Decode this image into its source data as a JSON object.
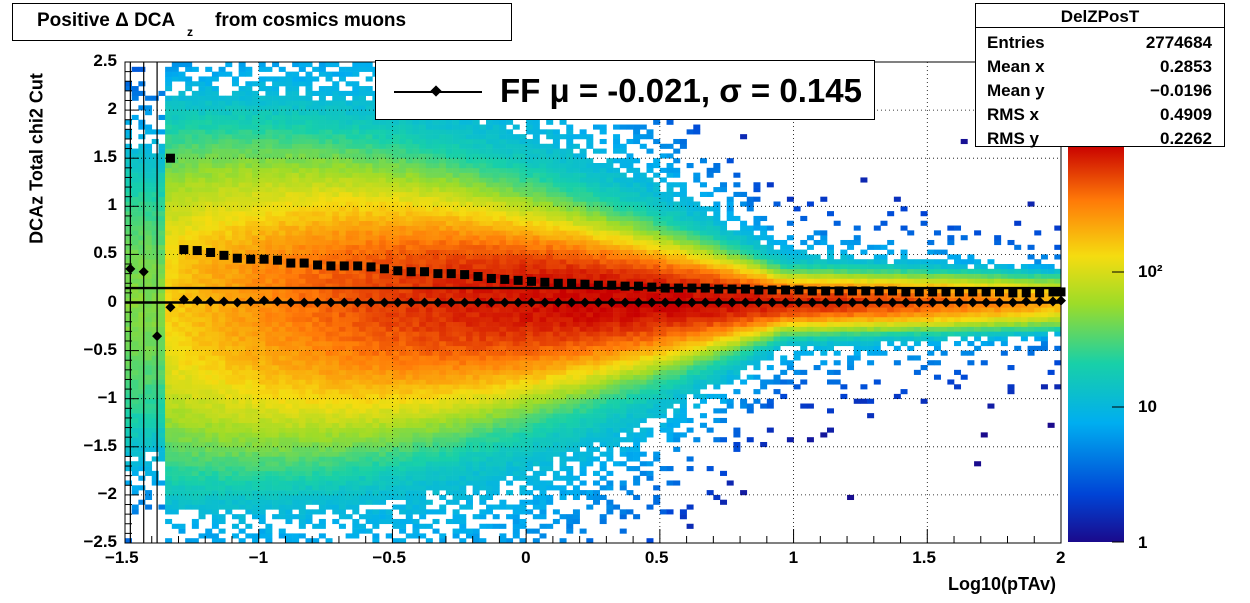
{
  "title": {
    "prefix": "Positive Δ DCA",
    "subscript": "z",
    "suffix": "from cosmics muons"
  },
  "stats": {
    "name": "DelZPosT",
    "rows": [
      {
        "key": "Entries",
        "value": "2774684"
      },
      {
        "key": "Mean x",
        "value": "0.2853"
      },
      {
        "key": "Mean y",
        "value": "−0.0196"
      },
      {
        "key": "RMS x",
        "value": "0.4909"
      },
      {
        "key": "RMS y",
        "value": "0.2262"
      }
    ]
  },
  "legend": {
    "text": "FF μ = -0.021, σ =   0.145"
  },
  "chart_data": {
    "type": "heatmap",
    "title": "Positive Δ DCAz from cosmics muons",
    "xlabel": "Log10(pTAv)",
    "ylabel": "DCAz   Total chi2 Cut",
    "xlim": [
      -1.5,
      2
    ],
    "ylim": [
      -2.5,
      2.5
    ],
    "x_ticks": [
      "−1.5",
      "−1",
      "−0.5",
      "0",
      "0.5",
      "1",
      "1.5",
      "2"
    ],
    "y_ticks": [
      "2.5",
      "2",
      "1.5",
      "1",
      "0.5",
      "0",
      "−0.5",
      "−1",
      "−1.5",
      "−2",
      "−2.5"
    ],
    "colorbar": {
      "scale": "log",
      "range": [
        1,
        1000
      ],
      "tick_labels": [
        "1",
        "10",
        "10²"
      ]
    },
    "grid": true,
    "fit_line": {
      "y": 0.15
    },
    "series": [
      {
        "marker": "diamond",
        "x": [
          -1.48,
          -1.43,
          -1.38,
          -1.33,
          -1.28,
          -1.23,
          -1.18,
          -1.13,
          -1.08,
          -1.03,
          -0.98,
          -0.93,
          -0.88,
          -0.83,
          -0.78,
          -0.73,
          -0.68,
          -0.63,
          -0.58,
          -0.53,
          -0.48,
          -0.43,
          -0.38,
          -0.33,
          -0.28,
          -0.23,
          -0.18,
          -0.13,
          -0.08,
          -0.03,
          0.02,
          0.07,
          0.12,
          0.17,
          0.22,
          0.27,
          0.32,
          0.37,
          0.42,
          0.47,
          0.52,
          0.57,
          0.62,
          0.67,
          0.72,
          0.77,
          0.82,
          0.87,
          0.92,
          0.97,
          1.02,
          1.07,
          1.12,
          1.17,
          1.22,
          1.27,
          1.32,
          1.37,
          1.42,
          1.47,
          1.52,
          1.57,
          1.62,
          1.67,
          1.72,
          1.77,
          1.82,
          1.87,
          1.92,
          1.97,
          2.0
        ],
        "values": [
          0.35,
          0.32,
          -0.35,
          -0.05,
          0.03,
          0.02,
          0.01,
          0.01,
          0.0,
          0.01,
          0.02,
          0.01,
          0.0,
          0.0,
          0.0,
          0.0,
          0.0,
          0.0,
          0.0,
          0.0,
          0.0,
          0.0,
          0.0,
          0.0,
          0.0,
          0.0,
          0.0,
          0.0,
          0.0,
          0.0,
          0.0,
          0.0,
          0.0,
          0.0,
          0.0,
          0.0,
          0.0,
          0.0,
          0.0,
          0.0,
          0.0,
          0.0,
          0.0,
          0.0,
          0.0,
          0.0,
          0.0,
          0.0,
          0.0,
          0.0,
          0.0,
          0.0,
          0.0,
          0.0,
          0.0,
          0.0,
          0.0,
          0.0,
          0.0,
          0.0,
          0.0,
          0.0,
          0.0,
          0.0,
          0.0,
          0.0,
          0.0,
          0.01,
          0.01,
          0.01,
          0.02
        ]
      },
      {
        "marker": "square",
        "x": [
          -1.33,
          -1.28,
          -1.23,
          -1.18,
          -1.13,
          -1.08,
          -1.03,
          -0.98,
          -0.93,
          -0.88,
          -0.83,
          -0.78,
          -0.73,
          -0.68,
          -0.63,
          -0.58,
          -0.53,
          -0.48,
          -0.43,
          -0.38,
          -0.33,
          -0.28,
          -0.23,
          -0.18,
          -0.13,
          -0.08,
          -0.03,
          0.02,
          0.07,
          0.12,
          0.17,
          0.22,
          0.27,
          0.32,
          0.37,
          0.42,
          0.47,
          0.52,
          0.57,
          0.62,
          0.67,
          0.72,
          0.77,
          0.82,
          0.87,
          0.92,
          0.97,
          1.02,
          1.07,
          1.12,
          1.17,
          1.22,
          1.27,
          1.32,
          1.37,
          1.42,
          1.47,
          1.52,
          1.57,
          1.62,
          1.67,
          1.72,
          1.77,
          1.82,
          1.87,
          1.92,
          1.97,
          2.0
        ],
        "values": [
          1.5,
          0.55,
          0.54,
          0.52,
          0.49,
          0.46,
          0.45,
          0.45,
          0.44,
          0.41,
          0.41,
          0.39,
          0.38,
          0.38,
          0.38,
          0.37,
          0.35,
          0.33,
          0.32,
          0.32,
          0.3,
          0.3,
          0.29,
          0.27,
          0.25,
          0.24,
          0.23,
          0.22,
          0.21,
          0.2,
          0.2,
          0.19,
          0.18,
          0.18,
          0.17,
          0.17,
          0.16,
          0.15,
          0.15,
          0.15,
          0.15,
          0.14,
          0.14,
          0.14,
          0.13,
          0.13,
          0.13,
          0.13,
          0.12,
          0.12,
          0.12,
          0.12,
          0.12,
          0.12,
          0.12,
          0.11,
          0.11,
          0.11,
          0.11,
          0.11,
          0.11,
          0.11,
          0.11,
          0.1,
          0.1,
          0.1,
          0.11,
          0.11
        ]
      }
    ]
  }
}
